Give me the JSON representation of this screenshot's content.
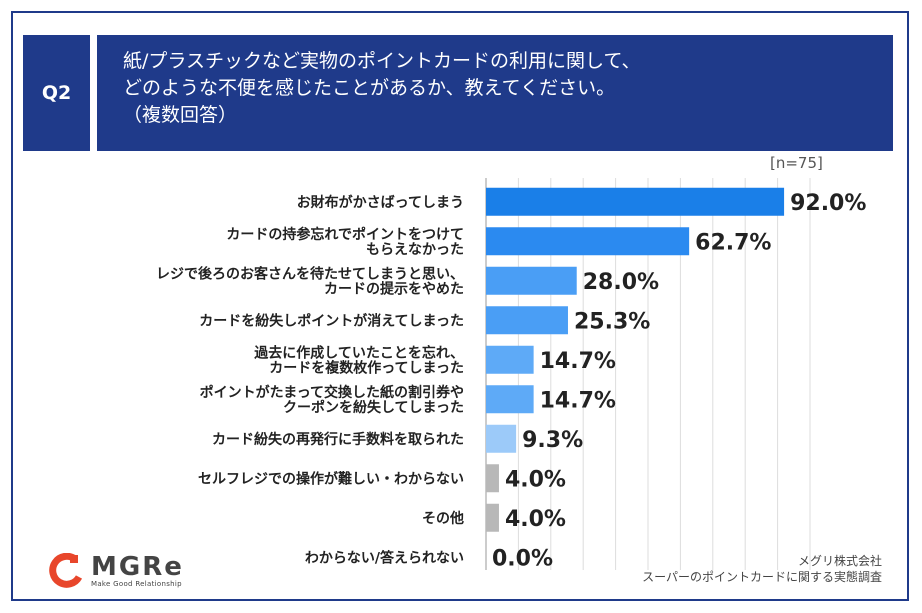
{
  "header": {
    "q_label": "Q2",
    "title_lines": [
      "紙/プラスチックなど実物のポイントカードの利用に関して、",
      "どのような不便を感じたことがあるか、教えてください。",
      "（複数回答）"
    ]
  },
  "sample": "[n=75]",
  "chart_data": {
    "type": "bar",
    "orientation": "horizontal",
    "categories": [
      [
        "お財布がかさばってしまう"
      ],
      [
        "カードの持参忘れでポイントをつけて",
        "もらえなかった"
      ],
      [
        "レジで後ろのお客さんを待たせてしまうと思い、",
        "カードの提示をやめた"
      ],
      [
        "カードを紛失しポイントが消えてしまった"
      ],
      [
        "過去に作成していたことを忘れ、",
        "カードを複数枚作ってしまった"
      ],
      [
        "ポイントがたまって交換した紙の割引券や",
        "クーポンを紛失してしまった"
      ],
      [
        "カード紛失の再発行に手数料を取られた"
      ],
      [
        "セルフレジでの操作が難しい・わからない"
      ],
      [
        "その他"
      ],
      [
        "わからない/答えられない"
      ]
    ],
    "values": [
      92.0,
      62.7,
      28.0,
      25.3,
      14.7,
      14.7,
      9.3,
      4.0,
      4.0,
      0.0
    ],
    "value_labels": [
      "92.0%",
      "62.7%",
      "28.0%",
      "25.3%",
      "14.7%",
      "14.7%",
      "9.3%",
      "4.0%",
      "4.0%",
      "0.0%"
    ],
    "bar_colors": [
      "#1a7fe8",
      "#2b8af0",
      "#4a9ef5",
      "#4a9ef5",
      "#5eaaf7",
      "#5eaaf7",
      "#9ccaf9",
      "#b8b8b8",
      "#b8b8b8",
      "#b8b8b8"
    ],
    "xlim": [
      0,
      100
    ],
    "grid": true
  },
  "source": {
    "line1": "メグリ株式会社",
    "line2": "スーパーのポイントカードに関する実態調査"
  },
  "logo": {
    "word": "MGRe",
    "tagline": "Make Good Relationship",
    "colors": {
      "accent": "#e8462b"
    }
  },
  "colors": {
    "frame": "#1f3a8a",
    "header_bg": "#1f3a8a"
  }
}
